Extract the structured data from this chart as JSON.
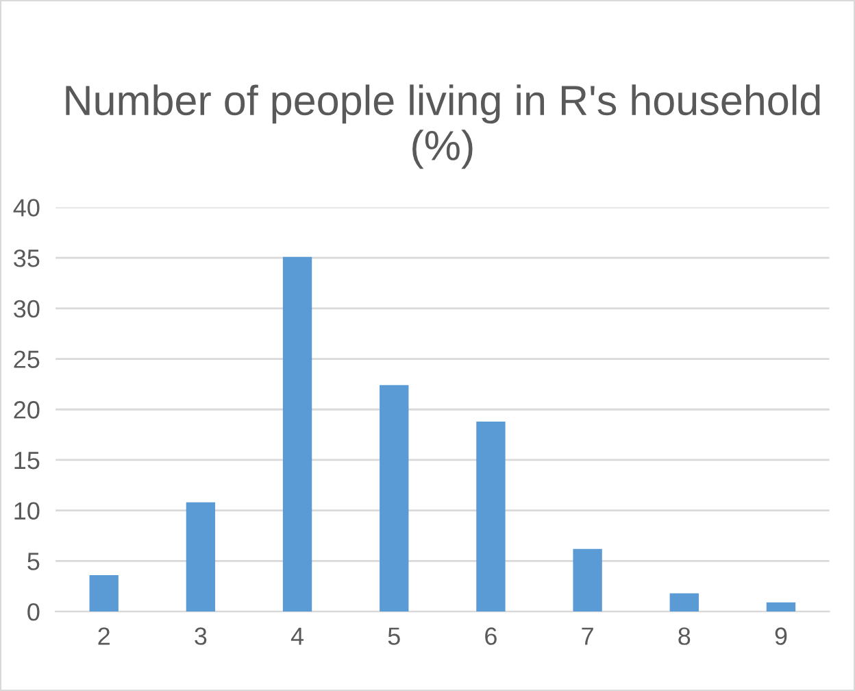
{
  "chart_data": {
    "type": "bar",
    "title": "Number of people living in R's household (%)",
    "categories": [
      "2",
      "3",
      "4",
      "5",
      "6",
      "7",
      "8",
      "9"
    ],
    "values": [
      3.6,
      10.8,
      35.1,
      22.4,
      18.8,
      6.2,
      1.8,
      0.9
    ],
    "color": "#5b9bd5",
    "ylim": [
      0,
      40
    ],
    "yticks": [
      0,
      5,
      10,
      15,
      20,
      25,
      30,
      35,
      40
    ],
    "grid": "y"
  }
}
